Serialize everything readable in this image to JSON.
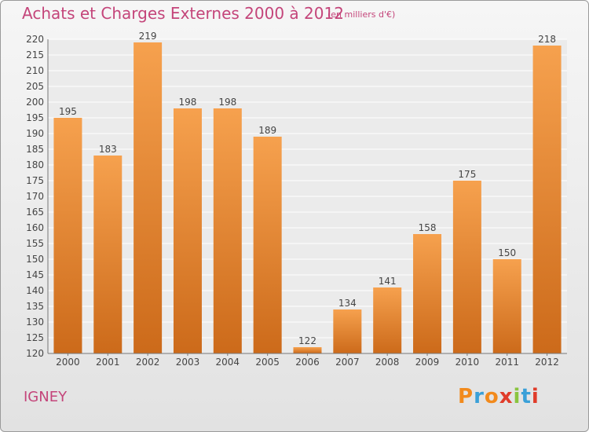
{
  "header": {
    "title": "Achats et Charges Externes 2000 à 2012",
    "subtitle": "(en milliers d'€)"
  },
  "footer": {
    "place": "IGNEY",
    "logo": "Proxiti"
  },
  "colors": {
    "bar_light": "#f6a14e",
    "bar_dark": "#cc6a1a",
    "title": "#c4457a",
    "logo_letters": [
      "#f28a1c",
      "#3aa0d8",
      "#f28a1c",
      "#e03c2a",
      "#8ac43f",
      "#3aa0d8",
      "#e03c2a"
    ]
  },
  "chart_data": {
    "type": "bar",
    "categories": [
      "2000",
      "2001",
      "2002",
      "2003",
      "2004",
      "2005",
      "2006",
      "2007",
      "2008",
      "2009",
      "2010",
      "2011",
      "2012"
    ],
    "values": [
      195,
      183,
      219,
      198,
      198,
      189,
      122,
      134,
      141,
      158,
      175,
      150,
      218
    ],
    "ylim": [
      120,
      220
    ],
    "yticks": [
      120,
      125,
      130,
      135,
      140,
      145,
      150,
      155,
      160,
      165,
      170,
      175,
      180,
      185,
      190,
      195,
      200,
      205,
      210,
      215,
      220
    ],
    "grid": true,
    "data_labels": true
  }
}
